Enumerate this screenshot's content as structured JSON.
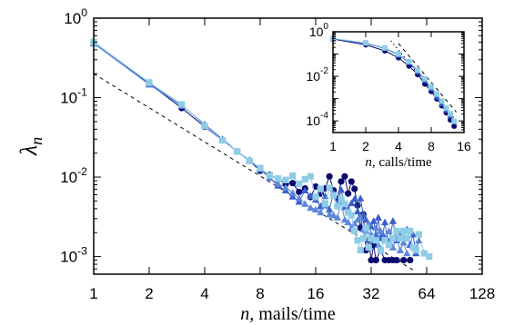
{
  "chart_data": [
    {
      "type": "scatter",
      "panel": "main",
      "xlabel_var": "n",
      "xlabel_unit": ", mails/time",
      "ylabel_var": "λ",
      "ylabel_sub": "n",
      "xscale": "log2",
      "yscale": "log10",
      "xlim": [
        1,
        128
      ],
      "ylim": [
        0.0006,
        1
      ],
      "xticks": [
        1,
        2,
        4,
        8,
        16,
        32,
        64,
        128
      ],
      "xtick_labels": [
        "1",
        "2",
        "4",
        "8",
        "16",
        "32",
        "64",
        "128"
      ],
      "yticks": [
        0.001,
        0.01,
        0.1,
        1
      ],
      "ytick_labels": [
        {
          "base": "10",
          "exp": "-3"
        },
        {
          "base": "10",
          "exp": "-2"
        },
        {
          "base": "10",
          "exp": "-1"
        },
        {
          "base": "10",
          "exp": "0"
        }
      ],
      "grid": false,
      "reference_line": {
        "style": "dashed",
        "color": "#000000",
        "points": [
          [
            1,
            0.2
          ],
          [
            55,
            0.00066
          ]
        ]
      },
      "series": [
        {
          "marker": "circle",
          "color": "#0a0a6e",
          "points": [
            [
              1,
              0.5
            ],
            [
              2,
              0.15
            ],
            [
              3,
              0.074
            ],
            [
              4,
              0.043
            ],
            [
              5,
              0.029
            ],
            [
              6,
              0.021
            ],
            [
              7,
              0.016
            ],
            [
              8,
              0.012
            ],
            [
              9,
              0.0107
            ],
            [
              10,
              0.0094
            ],
            [
              11,
              0.0082
            ],
            [
              12,
              0.0084
            ],
            [
              13,
              0.0065
            ],
            [
              14,
              0.0072
            ],
            [
              15,
              0.0056
            ],
            [
              16,
              0.0076
            ],
            [
              17,
              0.0062
            ],
            [
              18,
              0.0072
            ],
            [
              19,
              0.0102
            ],
            [
              20,
              0.0068
            ],
            [
              21,
              0.0053
            ],
            [
              22,
              0.0088
            ],
            [
              23,
              0.0102
            ],
            [
              24,
              0.0062
            ],
            [
              25,
              0.0088
            ],
            [
              26,
              0.0071
            ],
            [
              27,
              0.0044
            ],
            [
              28,
              0.0023
            ],
            [
              29,
              0.0034
            ],
            [
              30,
              0.0012
            ],
            [
              31,
              0.0016
            ],
            [
              32,
              0.0009
            ],
            [
              33,
              0.0014
            ],
            [
              34,
              0.0009
            ],
            [
              36,
              0.0012
            ],
            [
              38,
              0.0009
            ],
            [
              40,
              0.0009
            ],
            [
              42,
              0.0009
            ],
            [
              44,
              0.0009
            ],
            [
              48,
              0.0009
            ],
            [
              52,
              0.0009
            ]
          ]
        },
        {
          "marker": "triangle",
          "color": "#3a5fcd",
          "points": [
            [
              1,
              0.49
            ],
            [
              2,
              0.152
            ],
            [
              3,
              0.08
            ],
            [
              4,
              0.046
            ],
            [
              5,
              0.03
            ],
            [
              6,
              0.021
            ],
            [
              7,
              0.016
            ],
            [
              8,
              0.0125
            ],
            [
              9,
              0.0098
            ],
            [
              10,
              0.0078
            ],
            [
              11,
              0.0068
            ],
            [
              12,
              0.0057
            ],
            [
              13,
              0.0049
            ],
            [
              14,
              0.0068
            ],
            [
              15,
              0.0058
            ],
            [
              16,
              0.0052
            ],
            [
              17,
              0.0043
            ],
            [
              18,
              0.0058
            ],
            [
              19,
              0.0039
            ],
            [
              20,
              0.0063
            ],
            [
              21,
              0.0046
            ],
            [
              22,
              0.0069
            ],
            [
              23,
              0.0042
            ],
            [
              24,
              0.0039
            ],
            [
              25,
              0.0047
            ],
            [
              26,
              0.0053
            ],
            [
              27,
              0.0037
            ],
            [
              28,
              0.0054
            ],
            [
              29,
              0.0034
            ],
            [
              30,
              0.0029
            ],
            [
              31,
              0.0025
            ],
            [
              32,
              0.0024
            ],
            [
              33,
              0.0028
            ],
            [
              34,
              0.0019
            ],
            [
              35,
              0.0031
            ],
            [
              36,
              0.0017
            ],
            [
              37,
              0.0019
            ],
            [
              38,
              0.0027
            ],
            [
              39,
              0.0017
            ],
            [
              40,
              0.0014
            ],
            [
              42,
              0.0028
            ],
            [
              44,
              0.0016
            ],
            [
              46,
              0.0019
            ],
            [
              48,
              0.0017
            ],
            [
              50,
              0.0022
            ],
            [
              52,
              0.0014
            ],
            [
              54,
              0.0019
            ],
            [
              56,
              0.0011
            ],
            [
              58,
              0.0016
            ]
          ]
        },
        {
          "marker": "triangle",
          "color": "#5b88dc",
          "points": [
            [
              1,
              0.48
            ],
            [
              2,
              0.146
            ],
            [
              3,
              0.079
            ],
            [
              4,
              0.046
            ],
            [
              5,
              0.029
            ],
            [
              6,
              0.021
            ],
            [
              7,
              0.0165
            ],
            [
              8,
              0.0128
            ],
            [
              9,
              0.0098
            ],
            [
              10,
              0.0082
            ],
            [
              11,
              0.0074
            ],
            [
              12,
              0.0063
            ],
            [
              13,
              0.0054
            ],
            [
              14,
              0.0046
            ],
            [
              15,
              0.0041
            ],
            [
              16,
              0.0039
            ],
            [
              17,
              0.0036
            ],
            [
              18,
              0.0044
            ],
            [
              19,
              0.0034
            ],
            [
              20,
              0.0033
            ],
            [
              21,
              0.0031
            ],
            [
              22,
              0.0049
            ],
            [
              23,
              0.0029
            ],
            [
              24,
              0.0027
            ],
            [
              25,
              0.0023
            ],
            [
              26,
              0.0026
            ],
            [
              27,
              0.0029
            ],
            [
              28,
              0.0031
            ],
            [
              29,
              0.0022
            ],
            [
              30,
              0.0021
            ],
            [
              31,
              0.0026
            ],
            [
              32,
              0.0019
            ],
            [
              33,
              0.0016
            ],
            [
              34,
              0.0023
            ],
            [
              35,
              0.0014
            ],
            [
              36,
              0.0021
            ],
            [
              38,
              0.0016
            ],
            [
              40,
              0.0021
            ],
            [
              42,
              0.0013
            ],
            [
              44,
              0.0017
            ],
            [
              46,
              0.0012
            ],
            [
              48,
              0.0015
            ],
            [
              50,
              0.0011
            ]
          ]
        },
        {
          "marker": "square",
          "color": "#8fcde6",
          "points": [
            [
              1,
              0.5
            ],
            [
              2,
              0.155
            ],
            [
              3,
              0.082
            ],
            [
              4,
              0.044
            ],
            [
              5,
              0.029
            ],
            [
              6,
              0.021
            ],
            [
              7,
              0.016
            ],
            [
              8,
              0.013
            ],
            [
              9,
              0.0105
            ],
            [
              10,
              0.0096
            ],
            [
              11,
              0.0092
            ],
            [
              12,
              0.0104
            ],
            [
              13,
              0.0082
            ],
            [
              14,
              0.0094
            ],
            [
              15,
              0.0102
            ],
            [
              16,
              0.0056
            ],
            [
              17,
              0.0071
            ],
            [
              18,
              0.0046
            ],
            [
              19,
              0.0073
            ],
            [
              20,
              0.0059
            ],
            [
              21,
              0.0043
            ],
            [
              22,
              0.0053
            ],
            [
              23,
              0.0046
            ],
            [
              24,
              0.0036
            ],
            [
              25,
              0.0033
            ],
            [
              26,
              0.0021
            ],
            [
              27,
              0.0016
            ],
            [
              28,
              0.0012
            ],
            [
              29,
              0.0017
            ],
            [
              30,
              0.0023
            ],
            [
              31,
              0.0013
            ],
            [
              32,
              0.0017
            ],
            [
              34,
              0.0016
            ],
            [
              36,
              0.0012
            ],
            [
              38,
              0.0016
            ],
            [
              40,
              0.0014
            ],
            [
              42,
              0.0017
            ],
            [
              44,
              0.0021
            ],
            [
              46,
              0.0017
            ],
            [
              48,
              0.0021
            ],
            [
              50,
              0.0017
            ],
            [
              52,
              0.0021
            ],
            [
              54,
              0.0013
            ],
            [
              56,
              0.0012
            ],
            [
              58,
              0.0019
            ],
            [
              62,
              0.0011
            ],
            [
              66,
              0.001
            ]
          ]
        }
      ]
    },
    {
      "type": "scatter",
      "panel": "inset",
      "xlabel_var": "n",
      "xlabel_unit": ", calls/time",
      "xscale": "log2",
      "yscale": "log10",
      "xlim": [
        1,
        16
      ],
      "ylim": [
        3e-05,
        1
      ],
      "xticks": [
        1,
        2,
        4,
        8,
        16
      ],
      "xtick_labels": [
        "1",
        "2",
        "4",
        "8",
        "16"
      ],
      "yticks": [
        0.0001,
        0.01,
        1
      ],
      "ytick_labels": [
        {
          "base": "10",
          "exp": "-4"
        },
        {
          "base": "10",
          "exp": "-2"
        },
        {
          "base": "10",
          "exp": "0"
        }
      ],
      "grid": false,
      "reference_lines": [
        {
          "style": "dotted",
          "color": "#000000",
          "points": [
            [
              3.4,
              0.4
            ],
            [
              13.2,
              0.00012
            ]
          ]
        },
        {
          "style": "dashed",
          "color": "#000000",
          "points": [
            [
              4.0,
              0.3
            ],
            [
              13.6,
              0.00025
            ]
          ]
        }
      ],
      "series": [
        {
          "marker": "circle",
          "color": "#0a0a6e",
          "points": [
            [
              1,
              0.47
            ],
            [
              2,
              0.26
            ],
            [
              3,
              0.14
            ],
            [
              4,
              0.068
            ],
            [
              5,
              0.029
            ],
            [
              6,
              0.012
            ],
            [
              7,
              0.0045
            ],
            [
              8,
              0.0021
            ],
            [
              9,
              0.00098
            ],
            [
              10,
              0.00048
            ],
            [
              11,
              0.00023
            ],
            [
              12,
              0.00011
            ],
            [
              13,
              5.8e-05
            ]
          ]
        },
        {
          "marker": "triangle",
          "color": "#3a5fcd",
          "points": [
            [
              1,
              0.48
            ],
            [
              2,
              0.3
            ],
            [
              3,
              0.18
            ],
            [
              4,
              0.092
            ],
            [
              5,
              0.042
            ],
            [
              6,
              0.016
            ],
            [
              7,
              0.0065
            ],
            [
              8,
              0.0028
            ],
            [
              9,
              0.0012
            ],
            [
              10,
              0.0006
            ],
            [
              11,
              0.00031
            ],
            [
              12,
              0.00017
            ]
          ]
        },
        {
          "marker": "square",
          "color": "#8fcde6",
          "points": [
            [
              1,
              0.5
            ],
            [
              2,
              0.32
            ],
            [
              3,
              0.19
            ],
            [
              4,
              0.1
            ],
            [
              5,
              0.046
            ],
            [
              6,
              0.019
            ],
            [
              7,
              0.0079
            ],
            [
              8,
              0.0034
            ],
            [
              9,
              0.0016
            ],
            [
              10,
              0.00078
            ],
            [
              11,
              0.00038
            ],
            [
              12,
              0.00021
            ],
            [
              13,
              9.5e-05
            ]
          ]
        }
      ]
    }
  ]
}
